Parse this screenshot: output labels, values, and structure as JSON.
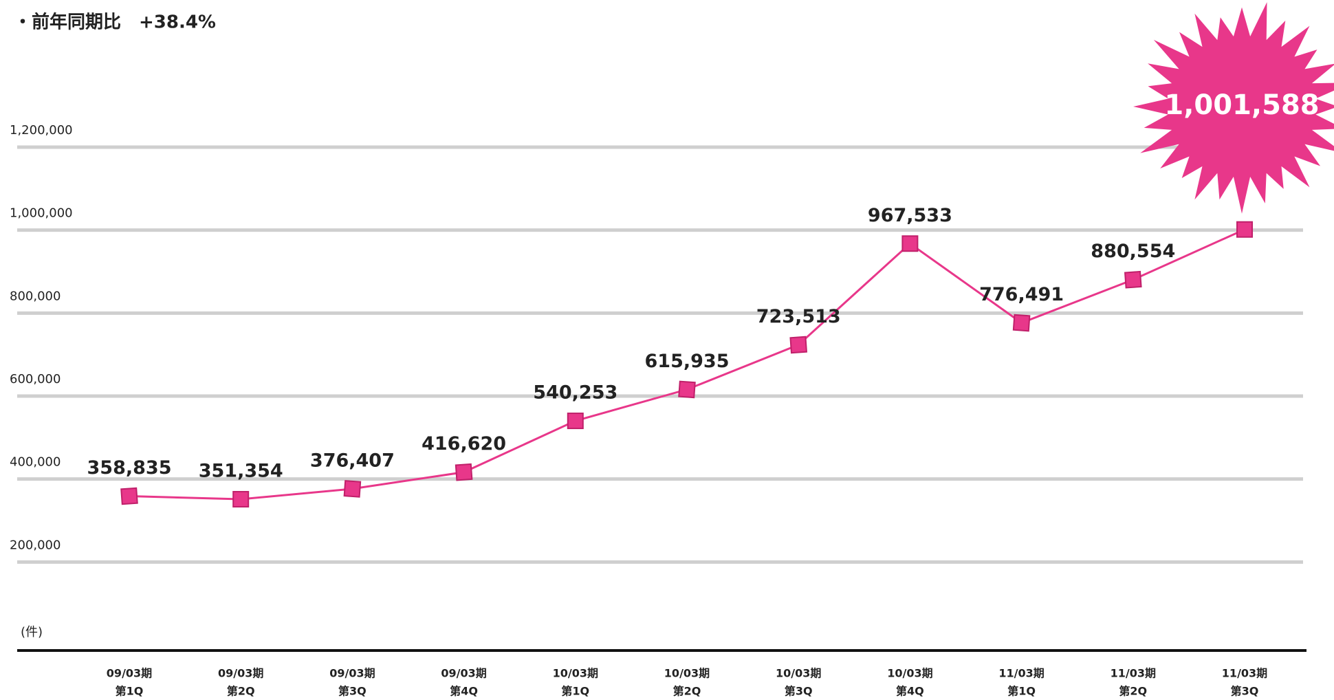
{
  "chart_data": {
    "type": "line",
    "subtitle": "・前年同期比　+38.4%",
    "y_unit": "(件)",
    "categories": [
      [
        "09/03期",
        "第1Q"
      ],
      [
        "09/03期",
        "第2Q"
      ],
      [
        "09/03期",
        "第3Q"
      ],
      [
        "09/03期",
        "第4Q"
      ],
      [
        "10/03期",
        "第1Q"
      ],
      [
        "10/03期",
        "第2Q"
      ],
      [
        "10/03期",
        "第3Q"
      ],
      [
        "10/03期",
        "第4Q"
      ],
      [
        "11/03期",
        "第1Q"
      ],
      [
        "11/03期",
        "第2Q"
      ],
      [
        "11/03期",
        "第3Q"
      ]
    ],
    "values": [
      358835,
      351354,
      376407,
      416620,
      540253,
      615935,
      723513,
      967533,
      776491,
      880554,
      1001588
    ],
    "value_labels": [
      "358,835",
      "351,354",
      "376,407",
      "416,620",
      "540,253",
      "615,935",
      "723,513",
      "967,533",
      "776,491",
      "880,554",
      "1,001,588"
    ],
    "color": "#e8378a",
    "ylim": [
      0,
      1200000
    ],
    "yticks": [
      {
        "value": 200000,
        "label": "200,000"
      },
      {
        "value": 400000,
        "label": "400,000"
      },
      {
        "value": 600000,
        "label": "600,000"
      },
      {
        "value": 800000,
        "label": "800,000"
      },
      {
        "value": 1000000,
        "label": "1,000,000"
      },
      {
        "value": 1200000,
        "label": "1,200,000"
      }
    ],
    "grid": true
  }
}
